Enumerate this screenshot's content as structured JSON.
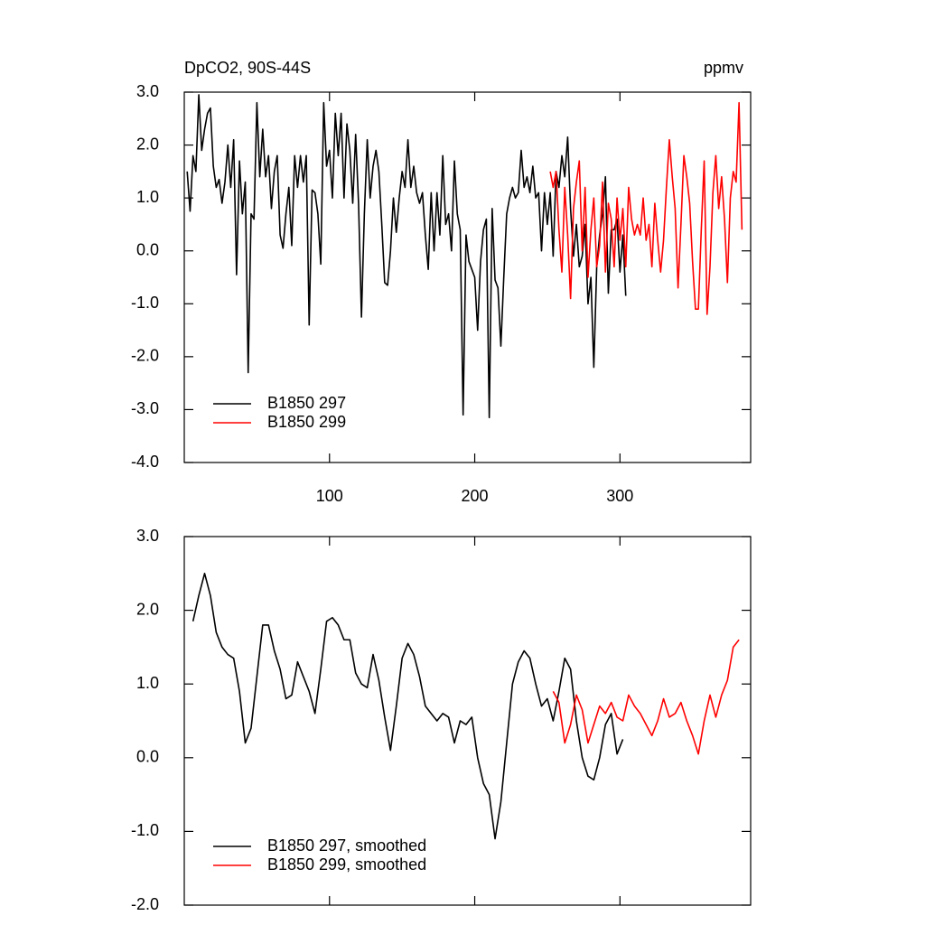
{
  "chart_data": [
    {
      "type": "line",
      "title": "DpCO2, 90S-44S",
      "unit_label": "ppmv",
      "xlim": [
        0,
        390
      ],
      "xticks": [
        100,
        200,
        300
      ],
      "ylim": [
        -4,
        3
      ],
      "yticks": [
        {
          "value": -4,
          "label": "-4.0"
        },
        {
          "value": -3,
          "label": "-3.0"
        },
        {
          "value": -2,
          "label": "-2.0"
        },
        {
          "value": -1,
          "label": "-1.0"
        },
        {
          "value": 0,
          "label": "0.0"
        },
        {
          "value": 1,
          "label": "1.0"
        },
        {
          "value": 2,
          "label": "2.0"
        },
        {
          "value": 3,
          "label": "3.0"
        }
      ],
      "legend": "lower left",
      "series": [
        {
          "name": "B1850 297",
          "color": "#000000",
          "x": [
            2,
            4,
            6,
            8,
            10,
            12,
            14,
            16,
            18,
            20,
            22,
            24,
            26,
            28,
            30,
            32,
            34,
            36,
            38,
            40,
            42,
            44,
            46,
            48,
            50,
            52,
            54,
            56,
            58,
            60,
            62,
            64,
            66,
            68,
            70,
            72,
            74,
            76,
            78,
            80,
            82,
            84,
            86,
            88,
            90,
            92,
            94,
            96,
            98,
            100,
            102,
            104,
            106,
            108,
            110,
            112,
            114,
            116,
            118,
            120,
            122,
            124,
            126,
            128,
            130,
            132,
            134,
            136,
            138,
            140,
            142,
            144,
            146,
            148,
            150,
            152,
            154,
            156,
            158,
            160,
            162,
            164,
            166,
            168,
            170,
            172,
            174,
            176,
            178,
            180,
            182,
            184,
            186,
            188,
            190,
            192,
            194,
            196,
            198,
            200,
            202,
            204,
            206,
            208,
            210,
            212,
            214,
            216,
            218,
            220,
            222,
            224,
            226,
            228,
            230,
            232,
            234,
            236,
            238,
            240,
            242,
            244,
            246,
            248,
            250,
            252,
            254,
            256,
            258,
            260,
            262,
            264,
            266,
            268,
            270,
            272,
            274,
            276,
            278,
            280,
            282,
            284,
            286,
            288,
            290,
            292,
            294,
            296,
            298,
            300,
            302,
            304
          ],
          "values": [
            1.5,
            0.75,
            1.8,
            1.5,
            2.95,
            1.9,
            2.3,
            2.6,
            2.7,
            1.6,
            1.2,
            1.35,
            0.9,
            1.3,
            2.0,
            1.2,
            2.1,
            -0.45,
            1.7,
            0.7,
            1.3,
            -2.3,
            0.7,
            0.6,
            2.8,
            1.4,
            2.3,
            1.4,
            1.8,
            0.8,
            1.5,
            1.8,
            0.3,
            0.05,
            0.7,
            1.2,
            0.1,
            1.8,
            1.2,
            1.8,
            1.3,
            1.8,
            -1.4,
            1.15,
            1.1,
            0.7,
            -0.25,
            2.8,
            1.6,
            1.9,
            1.0,
            2.6,
            1.8,
            2.6,
            1.0,
            2.4,
            1.9,
            0.9,
            2.2,
            0.9,
            -1.25,
            0.7,
            2.1,
            1.0,
            1.6,
            1.9,
            1.5,
            0.5,
            -0.6,
            -0.65,
            0.0,
            1.0,
            0.35,
            1.0,
            1.5,
            1.2,
            2.1,
            1.2,
            1.6,
            1.1,
            0.9,
            1.1,
            0.3,
            -0.35,
            1.1,
            0.0,
            1.1,
            0.3,
            1.8,
            0.5,
            0.7,
            0.0,
            1.7,
            0.7,
            0.4,
            -3.1,
            0.3,
            -0.2,
            -0.35,
            -0.5,
            -1.5,
            -0.2,
            0.4,
            0.6,
            -3.15,
            0.8,
            -0.55,
            -0.7,
            -1.8,
            -0.5,
            0.7,
            1.0,
            1.2,
            1.0,
            1.1,
            1.9,
            1.2,
            1.4,
            1.1,
            1.6,
            1.0,
            1.1,
            0.0,
            1.1,
            0.5,
            1.1,
            -0.1,
            1.5,
            1.2,
            1.8,
            1.4,
            2.15,
            0.8,
            -0.1,
            0.5,
            -0.3,
            -0.1,
            0.5,
            -1.0,
            -0.5,
            -2.2,
            -0.3,
            0.3,
            0.7,
            1.4,
            -0.8,
            0.4,
            0.4,
            0.6,
            -0.4,
            0.3,
            -0.85
          ]
        },
        {
          "name": "B1850 299",
          "color": "#ff0000",
          "x": [
            252,
            254,
            256,
            258,
            260,
            262,
            264,
            266,
            268,
            270,
            272,
            274,
            276,
            278,
            280,
            282,
            284,
            286,
            288,
            290,
            292,
            294,
            296,
            298,
            300,
            302,
            304,
            306,
            308,
            310,
            312,
            314,
            316,
            318,
            320,
            322,
            324,
            326,
            328,
            330,
            332,
            334,
            336,
            338,
            340,
            342,
            344,
            346,
            348,
            350,
            352,
            354,
            356,
            358,
            360,
            362,
            364,
            366,
            368,
            370,
            372,
            374,
            376,
            378,
            380,
            382,
            384
          ],
          "values": [
            1.5,
            1.2,
            1.5,
            0.4,
            -0.4,
            1.2,
            0.3,
            -0.9,
            0.8,
            1.3,
            1.7,
            0.0,
            1.2,
            -0.5,
            0.4,
            1.0,
            -0.3,
            0.1,
            1.3,
            -0.4,
            0.9,
            0.6,
            -0.3,
            1.0,
            0.2,
            0.8,
            -0.3,
            1.2,
            0.6,
            0.3,
            0.5,
            0.3,
            1.0,
            0.2,
            0.5,
            -0.3,
            0.9,
            0.2,
            -0.4,
            0.2,
            1.2,
            2.1,
            1.4,
            0.8,
            -0.7,
            0.5,
            1.8,
            1.4,
            0.9,
            -0.2,
            -1.1,
            -1.1,
            0.4,
            1.7,
            -1.2,
            -0.3,
            1.1,
            1.8,
            0.8,
            1.4,
            0.6,
            -0.6,
            1.0,
            1.5,
            1.3,
            2.8,
            0.4
          ]
        }
      ]
    },
    {
      "type": "line",
      "xlim": [
        0,
        390
      ],
      "xticks": [
        100,
        200,
        300
      ],
      "ylim": [
        -2,
        3
      ],
      "yticks": [
        {
          "value": -2,
          "label": "-2.0"
        },
        {
          "value": -1,
          "label": "-1.0"
        },
        {
          "value": 0,
          "label": "0.0"
        },
        {
          "value": 1,
          "label": "1.0"
        },
        {
          "value": 2,
          "label": "2.0"
        },
        {
          "value": 3,
          "label": "3.0"
        }
      ],
      "legend": "lower left",
      "series": [
        {
          "name": "B1850 297, smoothed",
          "color": "#000000",
          "x": [
            6,
            10,
            14,
            18,
            22,
            26,
            30,
            34,
            38,
            42,
            46,
            50,
            54,
            58,
            62,
            66,
            70,
            74,
            78,
            82,
            86,
            90,
            94,
            98,
            102,
            106,
            110,
            114,
            118,
            122,
            126,
            130,
            134,
            138,
            142,
            146,
            150,
            154,
            158,
            162,
            166,
            170,
            174,
            178,
            182,
            186,
            190,
            194,
            198,
            202,
            206,
            210,
            214,
            218,
            222,
            226,
            230,
            234,
            238,
            242,
            246,
            250,
            254,
            258,
            262,
            266,
            270,
            274,
            278,
            282,
            286,
            290,
            294,
            298,
            302
          ],
          "values": [
            1.85,
            2.2,
            2.5,
            2.2,
            1.7,
            1.5,
            1.4,
            1.35,
            0.9,
            0.2,
            0.4,
            1.1,
            1.8,
            1.8,
            1.45,
            1.2,
            0.8,
            0.85,
            1.3,
            1.1,
            0.9,
            0.6,
            1.2,
            1.85,
            1.9,
            1.8,
            1.6,
            1.6,
            1.15,
            1.0,
            0.95,
            1.4,
            1.05,
            0.55,
            0.1,
            0.7,
            1.35,
            1.55,
            1.4,
            1.1,
            0.7,
            0.6,
            0.5,
            0.6,
            0.55,
            0.2,
            0.5,
            0.45,
            0.55,
            0.0,
            -0.35,
            -0.5,
            -1.1,
            -0.6,
            0.2,
            1.0,
            1.3,
            1.45,
            1.35,
            1.0,
            0.7,
            0.8,
            0.5,
            0.9,
            1.35,
            1.2,
            0.5,
            0.0,
            -0.25,
            -0.3,
            0.0,
            0.45,
            0.6,
            0.05,
            0.25
          ]
        },
        {
          "name": "B1850 299, smoothed",
          "color": "#ff0000",
          "x": [
            254,
            258,
            262,
            266,
            270,
            274,
            278,
            282,
            286,
            290,
            294,
            298,
            302,
            306,
            310,
            314,
            318,
            322,
            326,
            330,
            334,
            338,
            342,
            346,
            350,
            354,
            358,
            362,
            366,
            370,
            374,
            378,
            382
          ],
          "values": [
            0.9,
            0.75,
            0.2,
            0.45,
            0.85,
            0.65,
            0.2,
            0.45,
            0.7,
            0.6,
            0.75,
            0.55,
            0.5,
            0.85,
            0.7,
            0.6,
            0.45,
            0.3,
            0.5,
            0.8,
            0.55,
            0.6,
            0.75,
            0.5,
            0.3,
            0.05,
            0.5,
            0.85,
            0.55,
            0.85,
            1.05,
            1.5,
            1.6
          ]
        }
      ]
    }
  ]
}
